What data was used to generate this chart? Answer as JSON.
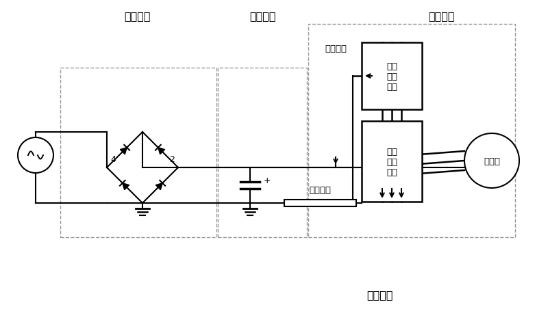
{
  "bg_color": "#ffffff",
  "line_color": "#000000",
  "section_labels": {
    "rectifier": "整流部分",
    "filter": "平波部分",
    "inverter": "逆变部分",
    "control": "控制部分"
  },
  "labels": {
    "bus_voltage": "母线电压",
    "detect_resistor": "检测电阻",
    "smart_inverter": "智能\n变频\n模块",
    "smart_control": "智能\n控制\n模块",
    "compressor": "压缩机",
    "node4": "4",
    "node2": "2",
    "plus": "+"
  }
}
